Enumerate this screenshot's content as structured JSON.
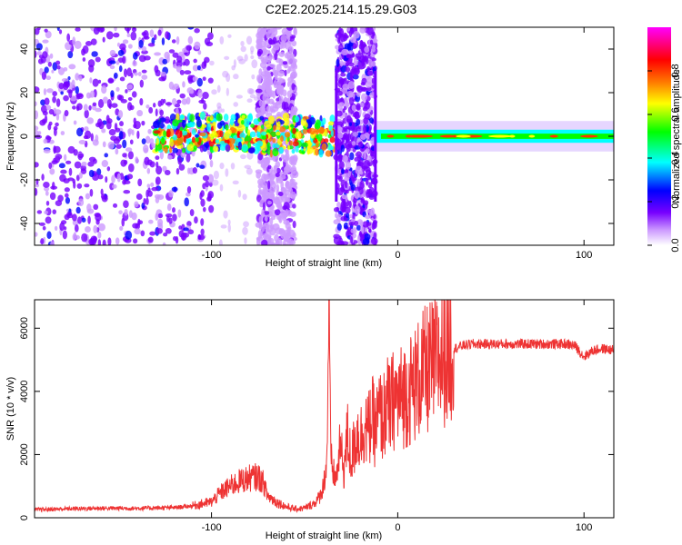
{
  "figure_title": "C2E2.2025.214.15.29.G03",
  "chart_data": [
    {
      "type": "heatmap",
      "xlabel": "Height of straight line (km)",
      "ylabel": "Frequency (Hz)",
      "xlim": [
        -195,
        116
      ],
      "ylim": [
        -50,
        50
      ],
      "x_ticks": [
        -100,
        0,
        100
      ],
      "y_ticks": [
        -40,
        -20,
        0,
        20,
        40
      ],
      "grid": false,
      "colorbar": {
        "label": "Normalized spectral amplitude",
        "range": [
          0,
          1
        ],
        "ticks": [
          0.0,
          0.2,
          0.4,
          0.6,
          0.8
        ],
        "colors": [
          "#ffffff",
          "#cc99ff",
          "#7700ff",
          "#0000ff",
          "#00ffff",
          "#00ff00",
          "#ffff00",
          "#ff7700",
          "#ff0000",
          "#ff00ff"
        ]
      },
      "regions": [
        {
          "x": [
            -195,
            -100
          ],
          "freq": [
            -50,
            50
          ],
          "amplitude": 0.15,
          "pattern": "scattered"
        },
        {
          "x": [
            -100,
            -70
          ],
          "freq": [
            -50,
            50
          ],
          "amplitude": 0.05,
          "pattern": "sparse"
        },
        {
          "x": [
            -75,
            -55
          ],
          "freq": [
            -50,
            50
          ],
          "amplitude": 0.08,
          "pattern": "scattered"
        },
        {
          "x": [
            -130,
            -33
          ],
          "freq": [
            -8,
            8
          ],
          "amplitude": 0.45,
          "pattern": "band"
        },
        {
          "x": [
            -33,
            -12
          ],
          "freq": [
            -50,
            50
          ],
          "amplitude": 0.15,
          "pattern": "scattered"
        },
        {
          "x": [
            -12,
            116
          ],
          "freq": [
            -3,
            3
          ],
          "amplitude": 0.8,
          "pattern": "tone"
        }
      ]
    },
    {
      "type": "line",
      "xlabel": "Height of straight line (km)",
      "ylabel": "SNR (10 * v/v)",
      "xlim": [
        -195,
        116
      ],
      "ylim": [
        0,
        6900
      ],
      "x_ticks": [
        -100,
        0,
        100
      ],
      "y_ticks": [
        0,
        2000,
        4000,
        6000
      ],
      "grid": false,
      "line_color": "#ee3333",
      "series": [
        {
          "x": [
            -195,
            -180,
            -160,
            -140,
            -120,
            -110,
            -100,
            -95,
            -90,
            -85,
            -80,
            -75,
            -72,
            -70,
            -65,
            -60,
            -55,
            -50,
            -45,
            -42,
            -40,
            -38,
            -37,
            -36,
            -35,
            -33,
            -31,
            -29,
            -27,
            -25,
            -22,
            -20,
            -18,
            -16,
            -14,
            -12,
            -10,
            -8,
            -6,
            -4,
            -2,
            0,
            3,
            6,
            10,
            14,
            18,
            22,
            26,
            30,
            35,
            40,
            45,
            50,
            60,
            70,
            80,
            90,
            95,
            100,
            105,
            110,
            116
          ],
          "y": [
            250,
            280,
            300,
            300,
            320,
            380,
            500,
            800,
            1000,
            1150,
            1250,
            1300,
            1100,
            700,
            500,
            350,
            280,
            300,
            450,
            650,
            1000,
            1800,
            6900,
            2000,
            1500,
            1200,
            2300,
            1500,
            2600,
            1800,
            2700,
            2500,
            3000,
            2700,
            3200,
            2800,
            3300,
            3100,
            3600,
            3400,
            3800,
            3700,
            3900,
            4000,
            4300,
            4600,
            4800,
            5000,
            5200,
            5350,
            5450,
            5500,
            5500,
            5500,
            5500,
            5500,
            5500,
            5500,
            5450,
            5100,
            5300,
            5350,
            5300
          ]
        }
      ]
    }
  ]
}
